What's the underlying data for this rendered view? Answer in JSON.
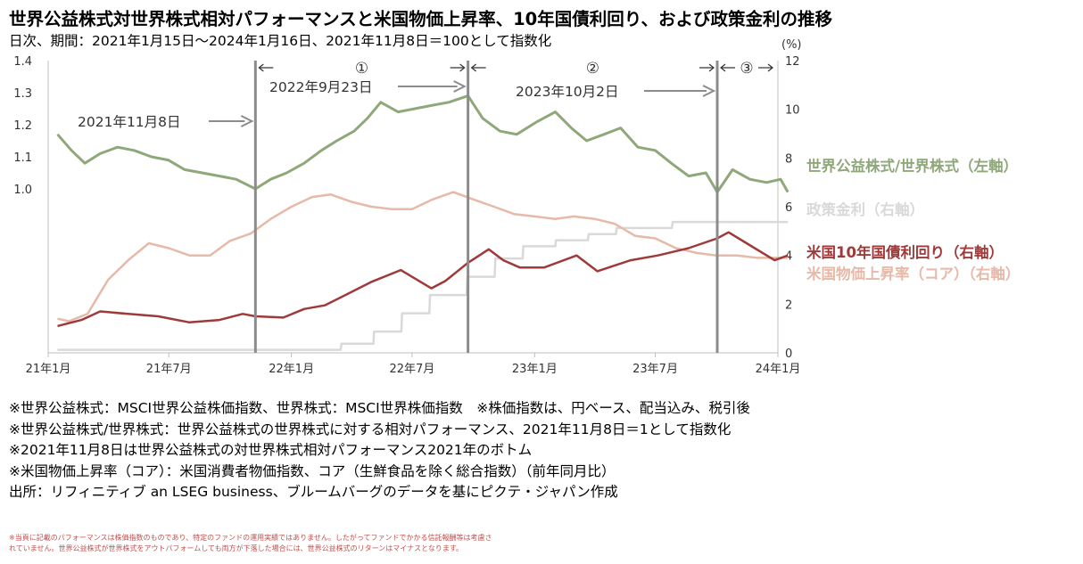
{
  "title": "世界公益株式対世界株式相対パフォーマンスと米国物価上昇率、10年国債利回り、および政策金利の推移",
  "subtitle": "日次、期間：2021年1月15日～2024年1月16日、2021年11月8日＝100として指数化",
  "notes": [
    "※世界公益株式：MSCI世界公益株価指数、世界株式：MSCI世界株価指数　※株価指数は、円ベース、配当込み、税引後",
    "※世界公益株式/世界株式：世界公益株式の世界株式に対する相対パフォーマンス、2021年11月8日＝1として指数化",
    "※2021年11月8日は世界公益株式の対世界株式相対パフォーマンス2021年のボトム",
    "※米国物価上昇率（コア）：米国消費者物価指数、コア（生鮮食品を除く総合指数）（前年同月比）",
    "出所：リフィニティブ an LSEG business、ブルームバーグのデータを基にピクテ・ジャパン作成"
  ],
  "disclaimer": [
    "※当頁に記載のパフォーマンスは株価指数のものであり、特定のファンドの運用実績ではありません。したがってファンドでかかる信託報酬等は考慮さ",
    "れていません。世界公益株式が世界株式をアウトパフォームしても両方が下落した場合には、世界公益株式のリターンはマイナスとなります。"
  ],
  "chart_data": {
    "type": "line",
    "x_ticks": [
      "21年1月",
      "21年7月",
      "22年1月",
      "22年7月",
      "23年1月",
      "23年7月",
      "24年1月"
    ],
    "x_range": [
      "2021-01-01",
      "2024-01-01"
    ],
    "y_left_ticks": [
      "1.4",
      "1.3",
      "1.2",
      "1.1",
      "1.0"
    ],
    "y_left_range": [
      0.5,
      1.4
    ],
    "y_right_ticks": [
      "12",
      "10",
      "8",
      "6",
      "4",
      "2",
      "0"
    ],
    "y_right_range": [
      0,
      12
    ],
    "y_right_unit": "(%)",
    "series": [
      {
        "name": "世界公益株式/世界株式（左軸）",
        "axis": "left",
        "color": "#8fa87a",
        "points": [
          [
            "2021-01-15",
            1.17
          ],
          [
            "2021-02-05",
            1.12
          ],
          [
            "2021-02-25",
            1.08
          ],
          [
            "2021-03-20",
            1.11
          ],
          [
            "2021-04-15",
            1.13
          ],
          [
            "2021-05-10",
            1.12
          ],
          [
            "2021-06-05",
            1.1
          ],
          [
            "2021-06-30",
            1.09
          ],
          [
            "2021-07-25",
            1.06
          ],
          [
            "2021-08-20",
            1.05
          ],
          [
            "2021-09-15",
            1.04
          ],
          [
            "2021-10-10",
            1.03
          ],
          [
            "2021-11-08",
            1.0
          ],
          [
            "2021-12-01",
            1.03
          ],
          [
            "2021-12-25",
            1.05
          ],
          [
            "2022-01-20",
            1.08
          ],
          [
            "2022-02-15",
            1.12
          ],
          [
            "2022-03-10",
            1.15
          ],
          [
            "2022-04-05",
            1.18
          ],
          [
            "2022-04-25",
            1.22
          ],
          [
            "2022-05-15",
            1.27
          ],
          [
            "2022-06-10",
            1.24
          ],
          [
            "2022-07-05",
            1.25
          ],
          [
            "2022-07-30",
            1.26
          ],
          [
            "2022-08-25",
            1.27
          ],
          [
            "2022-09-23",
            1.29
          ],
          [
            "2022-10-15",
            1.22
          ],
          [
            "2022-11-10",
            1.18
          ],
          [
            "2022-12-05",
            1.17
          ],
          [
            "2023-01-05",
            1.21
          ],
          [
            "2023-02-01",
            1.24
          ],
          [
            "2023-02-25",
            1.19
          ],
          [
            "2023-03-20",
            1.15
          ],
          [
            "2023-04-15",
            1.17
          ],
          [
            "2023-05-10",
            1.19
          ],
          [
            "2023-06-05",
            1.13
          ],
          [
            "2023-07-01",
            1.12
          ],
          [
            "2023-07-25",
            1.08
          ],
          [
            "2023-08-20",
            1.04
          ],
          [
            "2023-09-15",
            1.05
          ],
          [
            "2023-10-02",
            0.99
          ],
          [
            "2023-10-25",
            1.06
          ],
          [
            "2023-11-20",
            1.03
          ],
          [
            "2023-12-15",
            1.02
          ],
          [
            "2024-01-05",
            1.03
          ],
          [
            "2024-01-16",
            0.99
          ]
        ]
      },
      {
        "name": "政策金利（右軸）",
        "axis": "right",
        "color": "#d9d9d9",
        "points": [
          [
            "2021-01-15",
            0.125
          ],
          [
            "2022-03-16",
            0.125
          ],
          [
            "2022-03-17",
            0.375
          ],
          [
            "2022-05-04",
            0.375
          ],
          [
            "2022-05-05",
            0.875
          ],
          [
            "2022-06-15",
            0.875
          ],
          [
            "2022-06-16",
            1.625
          ],
          [
            "2022-07-27",
            1.625
          ],
          [
            "2022-07-28",
            2.375
          ],
          [
            "2022-09-21",
            2.375
          ],
          [
            "2022-09-22",
            3.125
          ],
          [
            "2022-11-02",
            3.125
          ],
          [
            "2022-11-03",
            3.875
          ],
          [
            "2022-12-14",
            3.875
          ],
          [
            "2022-12-15",
            4.375
          ],
          [
            "2023-02-01",
            4.375
          ],
          [
            "2023-02-02",
            4.625
          ],
          [
            "2023-03-22",
            4.625
          ],
          [
            "2023-03-23",
            4.875
          ],
          [
            "2023-05-03",
            4.875
          ],
          [
            "2023-05-04",
            5.125
          ],
          [
            "2023-07-26",
            5.125
          ],
          [
            "2023-07-27",
            5.375
          ],
          [
            "2024-01-16",
            5.375
          ]
        ]
      },
      {
        "name": "米国10年国債利回り（右軸）",
        "axis": "right",
        "color": "#9e3a3a",
        "points": [
          [
            "2021-01-15",
            1.1
          ],
          [
            "2021-02-20",
            1.35
          ],
          [
            "2021-03-20",
            1.7
          ],
          [
            "2021-05-01",
            1.6
          ],
          [
            "2021-06-15",
            1.5
          ],
          [
            "2021-08-01",
            1.25
          ],
          [
            "2021-09-15",
            1.35
          ],
          [
            "2021-10-20",
            1.6
          ],
          [
            "2021-11-08",
            1.5
          ],
          [
            "2021-12-20",
            1.45
          ],
          [
            "2022-01-20",
            1.8
          ],
          [
            "2022-02-20",
            1.95
          ],
          [
            "2022-03-25",
            2.4
          ],
          [
            "2022-04-30",
            2.9
          ],
          [
            "2022-06-14",
            3.4
          ],
          [
            "2022-07-30",
            2.65
          ],
          [
            "2022-08-20",
            2.95
          ],
          [
            "2022-09-23",
            3.7
          ],
          [
            "2022-10-24",
            4.25
          ],
          [
            "2022-11-15",
            3.8
          ],
          [
            "2022-12-10",
            3.5
          ],
          [
            "2023-01-15",
            3.5
          ],
          [
            "2023-03-05",
            4.0
          ],
          [
            "2023-04-05",
            3.35
          ],
          [
            "2023-05-25",
            3.8
          ],
          [
            "2023-07-05",
            4.0
          ],
          [
            "2023-08-20",
            4.3
          ],
          [
            "2023-10-02",
            4.7
          ],
          [
            "2023-10-19",
            4.95
          ],
          [
            "2023-11-15",
            4.5
          ],
          [
            "2023-12-27",
            3.8
          ],
          [
            "2024-01-16",
            4.0
          ]
        ]
      },
      {
        "name": "米国物価上昇率（コア）（右軸）",
        "axis": "right",
        "color": "#e6b9a8",
        "points": [
          [
            "2021-01-15",
            1.4
          ],
          [
            "2021-02-01",
            1.3
          ],
          [
            "2021-03-01",
            1.6
          ],
          [
            "2021-04-01",
            3.0
          ],
          [
            "2021-05-01",
            3.8
          ],
          [
            "2021-06-01",
            4.5
          ],
          [
            "2021-07-01",
            4.3
          ],
          [
            "2021-08-01",
            4.0
          ],
          [
            "2021-09-01",
            4.0
          ],
          [
            "2021-10-01",
            4.6
          ],
          [
            "2021-11-01",
            4.9
          ],
          [
            "2021-12-01",
            5.5
          ],
          [
            "2022-01-01",
            6.0
          ],
          [
            "2022-02-01",
            6.4
          ],
          [
            "2022-03-01",
            6.5
          ],
          [
            "2022-04-01",
            6.2
          ],
          [
            "2022-05-01",
            6.0
          ],
          [
            "2022-06-01",
            5.9
          ],
          [
            "2022-07-01",
            5.9
          ],
          [
            "2022-08-01",
            6.3
          ],
          [
            "2022-09-01",
            6.6
          ],
          [
            "2022-10-01",
            6.3
          ],
          [
            "2022-11-01",
            6.0
          ],
          [
            "2022-12-01",
            5.7
          ],
          [
            "2023-01-01",
            5.6
          ],
          [
            "2023-02-01",
            5.5
          ],
          [
            "2023-03-01",
            5.6
          ],
          [
            "2023-04-01",
            5.5
          ],
          [
            "2023-05-01",
            5.3
          ],
          [
            "2023-06-01",
            4.8
          ],
          [
            "2023-07-01",
            4.7
          ],
          [
            "2023-08-01",
            4.3
          ],
          [
            "2023-09-01",
            4.1
          ],
          [
            "2023-10-01",
            4.0
          ],
          [
            "2023-11-01",
            4.0
          ],
          [
            "2023-12-01",
            3.9
          ],
          [
            "2024-01-16",
            3.9
          ]
        ]
      }
    ],
    "vlines": [
      "2021-11-08",
      "2022-09-23",
      "2023-10-02"
    ],
    "annotations": [
      {
        "text": "2021年11月8日",
        "date": "2021-11-08"
      },
      {
        "text": "2022年9月23日",
        "date": "2022-09-23"
      },
      {
        "text": "2023年10月2日",
        "date": "2023-10-02"
      }
    ],
    "periods": [
      {
        "label": "①",
        "from": "2021-11-08",
        "to": "2022-09-23"
      },
      {
        "label": "②",
        "from": "2022-09-23",
        "to": "2023-10-02"
      },
      {
        "label": "③",
        "from": "2023-10-02",
        "to": "2024-01-16"
      }
    ]
  }
}
